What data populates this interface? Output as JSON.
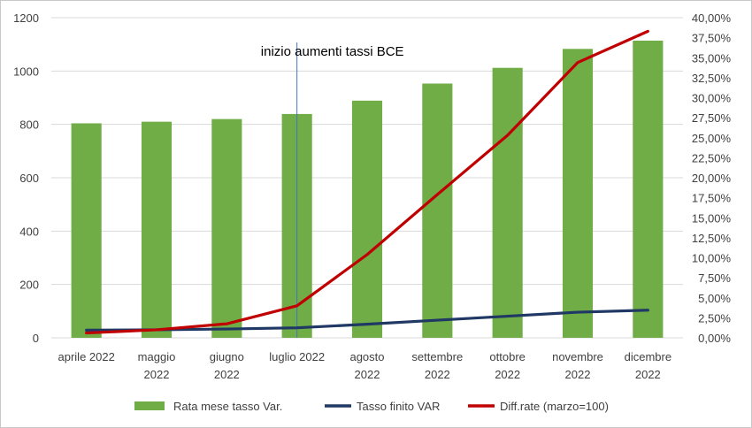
{
  "chart_data": {
    "type": "bar",
    "title": "",
    "categories": [
      [
        "aprile 2022"
      ],
      [
        "maggio",
        "2022"
      ],
      [
        "giugno",
        "2022"
      ],
      [
        "luglio 2022"
      ],
      [
        "agosto",
        "2022"
      ],
      [
        "settembre",
        "2022"
      ],
      [
        "ottobre",
        "2022"
      ],
      [
        "novembre",
        "2022"
      ],
      [
        "dicembre",
        "2022"
      ]
    ],
    "y_left": {
      "min": 0,
      "max": 1200,
      "ticks": [
        "0",
        "200",
        "400",
        "600",
        "800",
        "1000",
        "1200"
      ]
    },
    "y_right": {
      "min": 0,
      "max": 40,
      "ticks": [
        "0,00%",
        "2,50%",
        "5,00%",
        "7,50%",
        "10,00%",
        "12,50%",
        "15,00%",
        "17,50%",
        "20,00%",
        "22,50%",
        "25,00%",
        "27,50%",
        "30,00%",
        "32,50%",
        "35,00%",
        "37,50%",
        "40,00%"
      ]
    },
    "grid": true,
    "series": [
      {
        "name": "Rata mese tasso Var.",
        "kind": "bar",
        "axis": "left",
        "color": "#70AD47",
        "values": [
          804,
          810,
          820,
          839,
          889,
          953,
          1012,
          1083,
          1114
        ]
      },
      {
        "name": "Tasso finito VAR",
        "kind": "line",
        "axis": "right",
        "color": "#203864",
        "values": [
          0.95,
          1.0,
          1.1,
          1.25,
          1.7,
          2.2,
          2.7,
          3.2,
          3.45
        ]
      },
      {
        "name": "Diff.rate (marzo=100)",
        "kind": "line",
        "axis": "right",
        "color": "#C00000",
        "values": [
          0.6,
          1.0,
          1.75,
          4.0,
          10.4,
          17.9,
          25.3,
          34.4,
          38.3
        ]
      }
    ],
    "annotation": {
      "text": "inizio aumenti tassi BCE",
      "at_category": 3
    },
    "legend_position": "bottom"
  }
}
